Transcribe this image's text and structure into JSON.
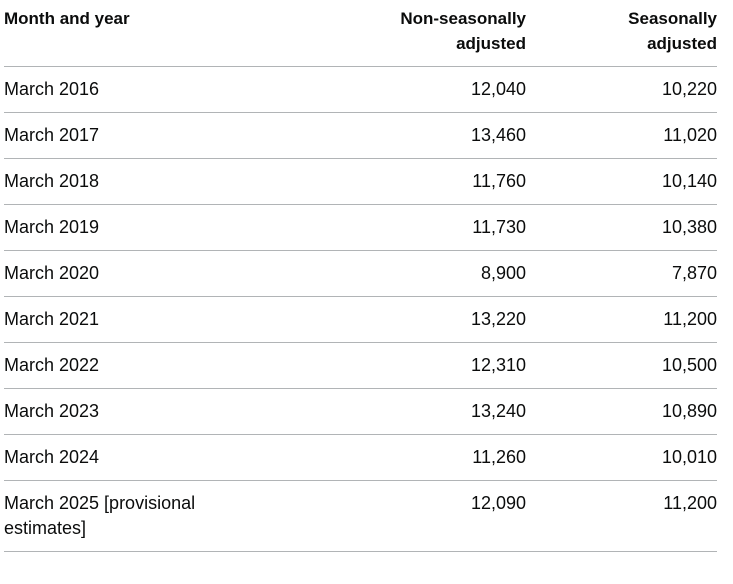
{
  "table": {
    "headers": {
      "month_year": "Month and year",
      "non_seasonal_line1": "Non-seasonally",
      "non_seasonal_line2": "adjusted",
      "seasonal_line1": "Seasonally",
      "seasonal_line2": "adjusted"
    },
    "rows": [
      {
        "month": "March 2016",
        "non_seasonal": "12,040",
        "seasonal": "10,220"
      },
      {
        "month": "March 2017",
        "non_seasonal": "13,460",
        "seasonal": "11,020"
      },
      {
        "month": "March 2018",
        "non_seasonal": "11,760",
        "seasonal": "10,140"
      },
      {
        "month": "March 2019",
        "non_seasonal": "11,730",
        "seasonal": "10,380"
      },
      {
        "month": "March 2020",
        "non_seasonal": "8,900",
        "seasonal": "7,870"
      },
      {
        "month": "March 2021",
        "non_seasonal": "13,220",
        "seasonal": "11,200"
      },
      {
        "month": "March 2022",
        "non_seasonal": "12,310",
        "seasonal": "10,500"
      },
      {
        "month": "March 2023",
        "non_seasonal": "13,240",
        "seasonal": "10,890"
      },
      {
        "month": "March 2024",
        "non_seasonal": "11,260",
        "seasonal": "10,010"
      },
      {
        "month": "March 2025 [provisional estimates]",
        "non_seasonal": "12,090",
        "seasonal": "11,200"
      }
    ]
  }
}
